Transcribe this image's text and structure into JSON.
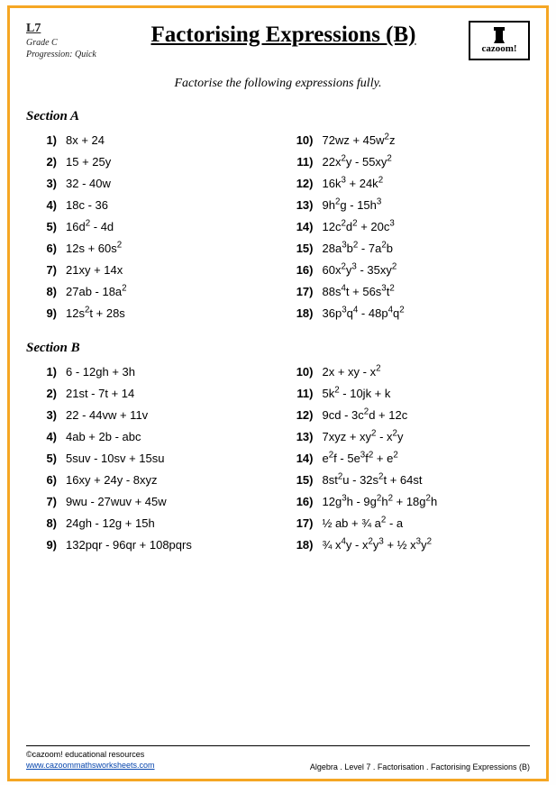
{
  "meta": {
    "level": "L7",
    "grade": "Grade C",
    "progression": "Progression: Quick"
  },
  "title": "Factorising Expressions (B)",
  "logo_text": "cazoom!",
  "instruction": "Factorise the following expressions fully.",
  "sectionA": {
    "title": "Section A",
    "left": [
      {
        "n": "1)",
        "e": "8x + 24"
      },
      {
        "n": "2)",
        "e": "15 + 25y"
      },
      {
        "n": "3)",
        "e": "32 - 40w"
      },
      {
        "n": "4)",
        "e": "18c  - 36"
      },
      {
        "n": "5)",
        "e": "16d<sup>2</sup> - 4d"
      },
      {
        "n": "6)",
        "e": "12s + 60s<sup>2</sup>"
      },
      {
        "n": "7)",
        "e": "21xy + 14x"
      },
      {
        "n": "8)",
        "e": "27ab - 18a<sup>2</sup>"
      },
      {
        "n": "9)",
        "e": "12s<sup>2</sup>t + 28s"
      }
    ],
    "right": [
      {
        "n": "10)",
        "e": "72wz + 45w<sup>2</sup>z"
      },
      {
        "n": "11)",
        "e": "22x<sup>2</sup>y - 55xy<sup>2</sup>"
      },
      {
        "n": "12)",
        "e": "16k<sup>3</sup> + 24k<sup>2</sup>"
      },
      {
        "n": "13)",
        "e": "9h<sup>2</sup>g - 15h<sup>3</sup>"
      },
      {
        "n": "14)",
        "e": "12c<sup>2</sup>d<sup>2</sup> + 20c<sup>3</sup>"
      },
      {
        "n": "15)",
        "e": "28a<sup>3</sup>b<sup>2</sup> - 7a<sup>2</sup>b"
      },
      {
        "n": "16)",
        "e": "60x<sup>2</sup>y<sup>3</sup> - 35xy<sup>2</sup>"
      },
      {
        "n": "17)",
        "e": "88s<sup>4</sup>t + 56s<sup>3</sup>t<sup>2</sup>"
      },
      {
        "n": "18)",
        "e": "36p<sup>3</sup>q<sup>4</sup> - 48p<sup>4</sup>q<sup>2</sup>"
      }
    ]
  },
  "sectionB": {
    "title": "Section B",
    "left": [
      {
        "n": "1)",
        "e": "6 - 12gh + 3h"
      },
      {
        "n": "2)",
        "e": "21st  - 7t + 14"
      },
      {
        "n": "3)",
        "e": "22 - 44vw + 11v"
      },
      {
        "n": "4)",
        "e": "4ab + 2b - abc"
      },
      {
        "n": "5)",
        "e": "5suv - 10sv + 15su"
      },
      {
        "n": "6)",
        "e": "16xy + 24y - 8xyz"
      },
      {
        "n": "7)",
        "e": "9wu - 27wuv + 45w"
      },
      {
        "n": "8)",
        "e": "24gh - 12g + 15h"
      },
      {
        "n": "9)",
        "e": "132pqr  - 96qr + 108pqrs"
      }
    ],
    "right": [
      {
        "n": "10)",
        "e": "2x + xy - x<sup>2</sup>"
      },
      {
        "n": "11)",
        "e": "5k<sup>2</sup> - 10jk + k"
      },
      {
        "n": "12)",
        "e": "9cd - 3c<sup>2</sup>d + 12c"
      },
      {
        "n": "13)",
        "e": "7xyz + xy<sup>2</sup> - x<sup>2</sup>y"
      },
      {
        "n": "14)",
        "e": "e<sup>2</sup>f - 5e<sup>3</sup>f<sup>2</sup> + e<sup>2</sup>"
      },
      {
        "n": "15)",
        "e": "8st<sup>2</sup>u - 32s<sup>2</sup>t + 64st"
      },
      {
        "n": "16)",
        "e": "12g<sup>3</sup>h - 9g<sup>2</sup>h<sup>2</sup> + 18g<sup>2</sup>h"
      },
      {
        "n": "17)",
        "e": "½ ab + ¾ a<sup>2</sup> - a"
      },
      {
        "n": "18)",
        "e": "¾ x<sup>4</sup>y - x<sup>2</sup>y<sup>3</sup> + ½ x<sup>3</sup>y<sup>2</sup>"
      }
    ]
  },
  "footer": {
    "copyright": "©cazoom! educational resources",
    "url": "www.cazoommathsworksheets.com",
    "breadcrumb": "Algebra   .   Level 7   .   Factorisation    .    Factorising Expressions (B)"
  }
}
